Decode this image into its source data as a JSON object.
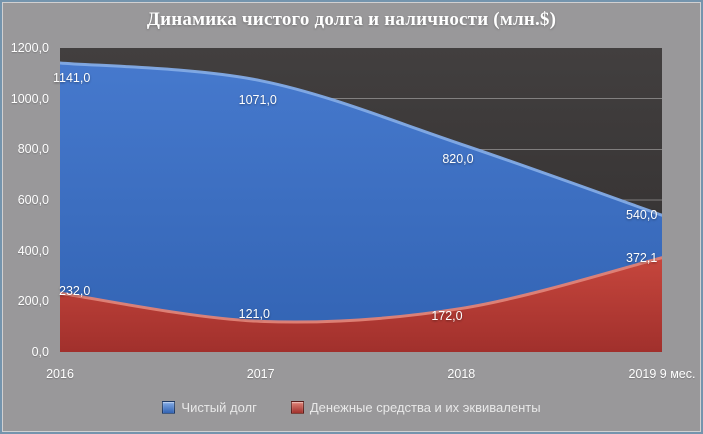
{
  "chart_data": {
    "type": "area",
    "title": "Динамика чистого долга и наличности (млн.$)",
    "categories": [
      "2016",
      "2017",
      "2018",
      "2019 9 мес."
    ],
    "series": [
      {
        "name": "Чистый долг",
        "values": [
          1141,
          1071,
          820,
          540
        ],
        "labels": [
          "1141,0",
          "1071,0",
          "820,0",
          "540,0"
        ],
        "fill_top": "#4679cd",
        "fill_bottom": "#3263b3",
        "edge": "#83abe6"
      },
      {
        "name": "Денежные средства и их эквиваленты",
        "values": [
          232,
          121,
          172,
          372.1
        ],
        "labels": [
          "232,0",
          "121,0",
          "172,0",
          "372,1"
        ],
        "fill_top": "#c6463d",
        "fill_bottom": "#a1302c",
        "edge": "#e08377"
      }
    ],
    "ylim": [
      0,
      1200
    ],
    "ytick_step": 200,
    "yticks": [
      "0,0",
      "200,0",
      "400,0",
      "600,0",
      "800,0",
      "1000,0",
      "1200,0"
    ],
    "grid": true,
    "legend_position": "bottom",
    "colors": {
      "page_background": "#99989a",
      "plot_background": "#3a3737",
      "gridline": "#8c8c8c",
      "text": "#ffffff",
      "frame_border": "#7494ad"
    }
  }
}
